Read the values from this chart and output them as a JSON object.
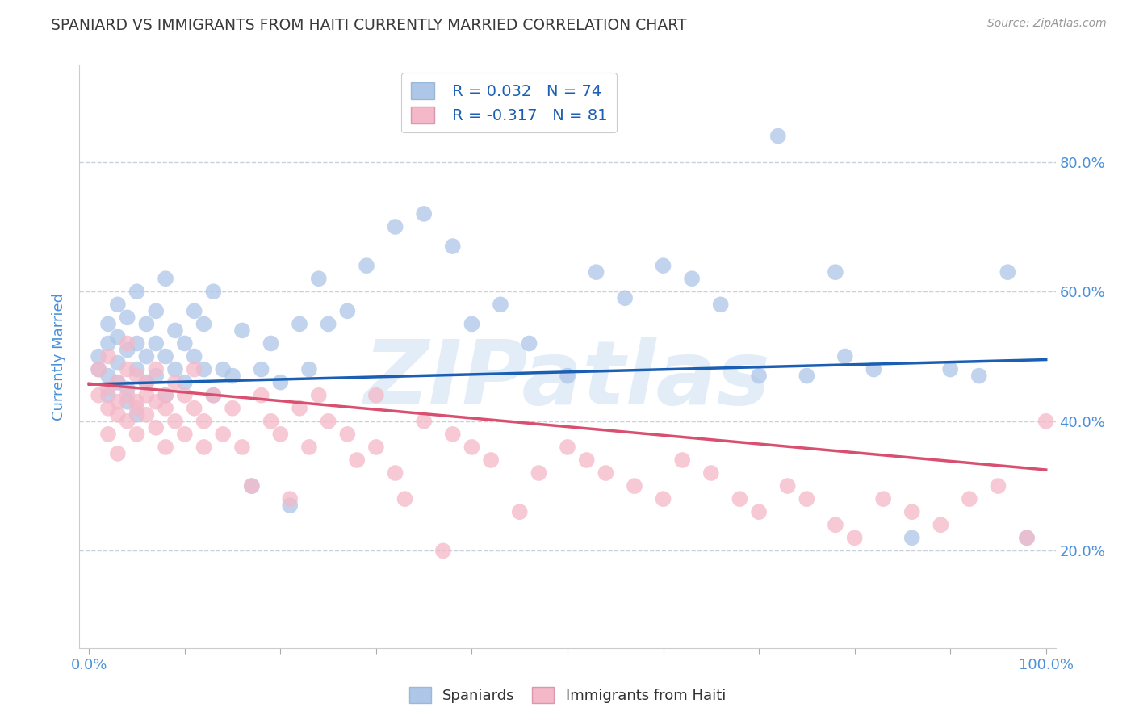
{
  "title": "SPANIARD VS IMMIGRANTS FROM HAITI CURRENTLY MARRIED CORRELATION CHART",
  "source": "Source: ZipAtlas.com",
  "ylabel": "Currently Married",
  "watermark": "ZIPatlas",
  "blue_label": "Spaniards",
  "pink_label": "Immigrants from Haiti",
  "blue_R": 0.032,
  "blue_N": 74,
  "pink_R": -0.317,
  "pink_N": 81,
  "blue_color": "#aec6e8",
  "pink_color": "#f4b8c8",
  "blue_line_color": "#1a5fb4",
  "pink_line_color": "#d94f70",
  "title_color": "#3a3a3a",
  "axis_label_color": "#4a90d9",
  "tick_label_color": "#4a90d9",
  "grid_color": "#c8d0dc",
  "background_color": "#ffffff",
  "xlim": [
    -0.01,
    1.01
  ],
  "ylim": [
    0.05,
    0.95
  ],
  "yticks": [
    0.2,
    0.4,
    0.6,
    0.8
  ],
  "xticks": [
    0.0,
    0.1,
    0.2,
    0.3,
    0.4,
    0.5,
    0.6,
    0.7,
    0.8,
    0.9,
    1.0
  ],
  "blue_line_x0": 0.0,
  "blue_line_x1": 1.0,
  "blue_line_y0": 0.457,
  "blue_line_y1": 0.495,
  "pink_line_x0": 0.0,
  "pink_line_x1": 1.0,
  "pink_line_y0": 0.458,
  "pink_line_y1": 0.325,
  "blue_x": [
    0.01,
    0.01,
    0.02,
    0.02,
    0.02,
    0.02,
    0.03,
    0.03,
    0.03,
    0.03,
    0.04,
    0.04,
    0.04,
    0.04,
    0.05,
    0.05,
    0.05,
    0.05,
    0.06,
    0.06,
    0.06,
    0.07,
    0.07,
    0.07,
    0.08,
    0.08,
    0.08,
    0.09,
    0.09,
    0.1,
    0.1,
    0.11,
    0.11,
    0.12,
    0.12,
    0.13,
    0.13,
    0.14,
    0.15,
    0.16,
    0.17,
    0.18,
    0.19,
    0.2,
    0.21,
    0.22,
    0.23,
    0.24,
    0.25,
    0.27,
    0.29,
    0.32,
    0.35,
    0.38,
    0.4,
    0.43,
    0.46,
    0.5,
    0.53,
    0.56,
    0.6,
    0.63,
    0.66,
    0.7,
    0.72,
    0.75,
    0.78,
    0.82,
    0.86,
    0.9,
    0.93,
    0.96,
    0.98,
    0.79
  ],
  "blue_y": [
    0.5,
    0.48,
    0.52,
    0.47,
    0.44,
    0.55,
    0.49,
    0.46,
    0.53,
    0.58,
    0.51,
    0.45,
    0.56,
    0.43,
    0.48,
    0.52,
    0.6,
    0.41,
    0.5,
    0.55,
    0.46,
    0.52,
    0.47,
    0.57,
    0.5,
    0.44,
    0.62,
    0.48,
    0.54,
    0.46,
    0.52,
    0.5,
    0.57,
    0.48,
    0.55,
    0.44,
    0.6,
    0.48,
    0.47,
    0.54,
    0.3,
    0.48,
    0.52,
    0.46,
    0.27,
    0.55,
    0.48,
    0.62,
    0.55,
    0.57,
    0.64,
    0.7,
    0.72,
    0.67,
    0.55,
    0.58,
    0.52,
    0.47,
    0.63,
    0.59,
    0.64,
    0.62,
    0.58,
    0.47,
    0.84,
    0.47,
    0.63,
    0.48,
    0.22,
    0.48,
    0.47,
    0.63,
    0.22,
    0.5
  ],
  "pink_x": [
    0.01,
    0.01,
    0.02,
    0.02,
    0.02,
    0.02,
    0.03,
    0.03,
    0.03,
    0.03,
    0.04,
    0.04,
    0.04,
    0.04,
    0.05,
    0.05,
    0.05,
    0.05,
    0.06,
    0.06,
    0.06,
    0.07,
    0.07,
    0.07,
    0.08,
    0.08,
    0.08,
    0.09,
    0.09,
    0.1,
    0.1,
    0.11,
    0.11,
    0.12,
    0.12,
    0.13,
    0.14,
    0.15,
    0.16,
    0.17,
    0.18,
    0.19,
    0.2,
    0.21,
    0.22,
    0.23,
    0.24,
    0.25,
    0.27,
    0.28,
    0.3,
    0.32,
    0.35,
    0.38,
    0.4,
    0.42,
    0.45,
    0.47,
    0.5,
    0.52,
    0.54,
    0.57,
    0.6,
    0.62,
    0.65,
    0.68,
    0.7,
    0.73,
    0.75,
    0.78,
    0.8,
    0.83,
    0.86,
    0.89,
    0.92,
    0.95,
    0.98,
    1.0,
    0.3,
    0.33,
    0.37
  ],
  "pink_y": [
    0.44,
    0.48,
    0.45,
    0.42,
    0.5,
    0.38,
    0.43,
    0.46,
    0.41,
    0.35,
    0.44,
    0.48,
    0.4,
    0.52,
    0.43,
    0.47,
    0.38,
    0.42,
    0.46,
    0.41,
    0.44,
    0.39,
    0.43,
    0.48,
    0.42,
    0.36,
    0.44,
    0.4,
    0.46,
    0.38,
    0.44,
    0.42,
    0.48,
    0.4,
    0.36,
    0.44,
    0.38,
    0.42,
    0.36,
    0.3,
    0.44,
    0.4,
    0.38,
    0.28,
    0.42,
    0.36,
    0.44,
    0.4,
    0.38,
    0.34,
    0.36,
    0.32,
    0.4,
    0.38,
    0.36,
    0.34,
    0.26,
    0.32,
    0.36,
    0.34,
    0.32,
    0.3,
    0.28,
    0.34,
    0.32,
    0.28,
    0.26,
    0.3,
    0.28,
    0.24,
    0.22,
    0.28,
    0.26,
    0.24,
    0.28,
    0.3,
    0.22,
    0.4,
    0.44,
    0.28,
    0.2
  ]
}
